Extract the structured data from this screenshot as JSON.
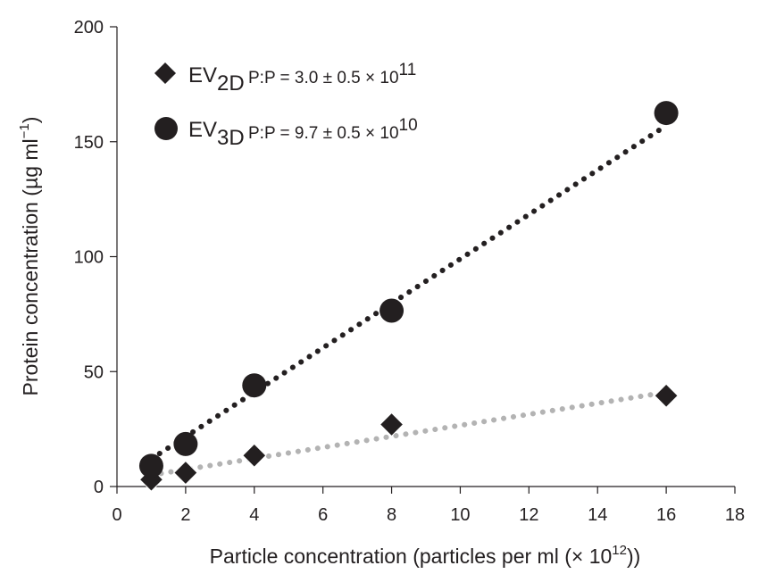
{
  "chart_data": {
    "type": "scatter",
    "xlabel": "Particle concentration (particles per ml (× 10",
    "xlabel_sup": "12",
    "xlabel_end": "))",
    "ylabel": "Protein concentration (µg ml",
    "ylabel_sup": "−1",
    "ylabel_end": ")",
    "xlim": [
      0,
      18
    ],
    "ylim": [
      0,
      200
    ],
    "xticks": [
      0,
      2,
      4,
      6,
      8,
      10,
      12,
      14,
      16,
      18
    ],
    "yticks": [
      0,
      50,
      100,
      150,
      200
    ],
    "grid": false,
    "legend_position": "top-left",
    "series": [
      {
        "name": "EV",
        "name_sub": "2D",
        "annotation": "P:P = 3.0 ± 0.5 × 10",
        "annotation_sup": "11",
        "marker": "diamond",
        "color": "#231f20",
        "x": [
          1,
          2,
          4,
          8,
          16
        ],
        "y": [
          3,
          6,
          13.5,
          27,
          39.5
        ],
        "fit": {
          "x": [
            1,
            16
          ],
          "y": [
            5,
            41
          ],
          "color": "#b3b3b3",
          "style": "dotted"
        }
      },
      {
        "name": "EV",
        "name_sub": "3D",
        "annotation": "P:P = 9.7 ± 0.5 × 10",
        "annotation_sup": "10",
        "marker": "circle",
        "color": "#231f20",
        "x": [
          1,
          2,
          4,
          8,
          16
        ],
        "y": [
          9,
          18.5,
          44,
          76.5,
          162.5
        ],
        "fit": {
          "x": [
            1,
            16
          ],
          "y": [
            12,
            157
          ],
          "color": "#231f20",
          "style": "dotted"
        }
      }
    ]
  }
}
